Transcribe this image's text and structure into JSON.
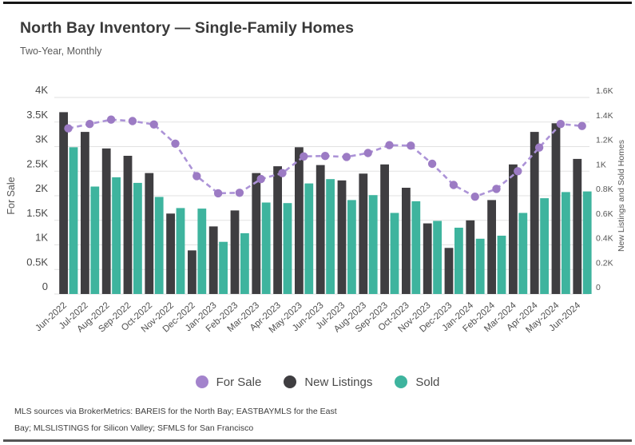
{
  "page": {
    "title": "North Bay Inventory — Single-Family Homes",
    "subtitle": "Two-Year, Monthly",
    "footer_line1": "MLS sources via BrokerMetrics: BAREIS for the North Bay; EASTBAYMLS for the East",
    "footer_line2": "Bay; MLSLISTINGS for Silicon Valley; SFMLS for San Francisco"
  },
  "colors": {
    "new_listings_bar": "#3f3e41",
    "sold_bar": "#3eb49e",
    "for_sale_point": "#9c7bc4",
    "for_sale_line": "#ac93d7",
    "gridline": "#e2e2e2",
    "top_rule": "#161616",
    "bottom_rule": "#555555"
  },
  "chart_data": {
    "type": "bar",
    "subtype": "grouped bars with dashed line overlay (dual axis)",
    "categories": [
      "Jun-2022",
      "Jul-2022",
      "Aug-2022",
      "Sep-2022",
      "Oct-2022",
      "Nov-2022",
      "Dec-2022",
      "Jan-2023",
      "Feb-2023",
      "Mar-2023",
      "Apr-2023",
      "May-2023",
      "Jun-2023",
      "Jul-2023",
      "Aug-2023",
      "Sep-2023",
      "Oct-2023",
      "Nov-2023",
      "Dec-2023",
      "Jan-2024",
      "Feb-2024",
      "Mar-2024",
      "Apr-2024",
      "May-2024",
      "Jun-2024"
    ],
    "series": [
      {
        "name": "For Sale",
        "type": "line",
        "axis": "left",
        "style": "dashed with circular markers",
        "color": "#9c7bc4",
        "line_color": "#ac93d7",
        "values": [
          3370,
          3460,
          3550,
          3520,
          3450,
          3060,
          2400,
          2050,
          2060,
          2340,
          2460,
          2800,
          2810,
          2790,
          2870,
          3030,
          3020,
          2650,
          2220,
          1980,
          2140,
          2500,
          2980,
          3460,
          3420
        ]
      },
      {
        "name": "New Listings",
        "type": "bar",
        "axis": "right",
        "color": "#3f3e41",
        "values": [
          1480,
          1320,
          1185,
          1125,
          985,
          655,
          355,
          550,
          680,
          985,
          1040,
          1195,
          1050,
          925,
          980,
          1055,
          865,
          575,
          375,
          600,
          765,
          1055,
          1320,
          1390,
          1100
        ]
      },
      {
        "name": "Sold",
        "type": "bar",
        "axis": "right",
        "color": "#3eb49e",
        "values": [
          1195,
          875,
          950,
          905,
          790,
          700,
          695,
          425,
          495,
          745,
          740,
          900,
          935,
          765,
          805,
          660,
          755,
          595,
          540,
          450,
          475,
          660,
          780,
          830,
          835
        ]
      }
    ],
    "axes": {
      "left": {
        "label": "For Sale",
        "min": 0,
        "max": 4000,
        "ticks": [
          "0",
          "0.5K",
          "1K",
          "1.5K",
          "2K",
          "2.5K",
          "3K",
          "3.5K",
          "4K"
        ]
      },
      "right": {
        "label": "New Listings and Sold Homes",
        "min": 0,
        "max": 1600,
        "ticks": [
          "0",
          "0.2K",
          "0.4K",
          "0.6K",
          "0.8K",
          "1K",
          "1.2K",
          "1.4K",
          "1.6K"
        ]
      }
    },
    "grid": true,
    "legend_position": "bottom",
    "title": "North Bay Inventory — Single-Family Homes",
    "subtitle": "Two-Year, Monthly"
  },
  "legend": {
    "items": [
      {
        "label": "For Sale",
        "color": "#a383cc"
      },
      {
        "label": "New Listings",
        "color": "#3f3e41"
      },
      {
        "label": "Sold",
        "color": "#3eb49e"
      }
    ]
  }
}
